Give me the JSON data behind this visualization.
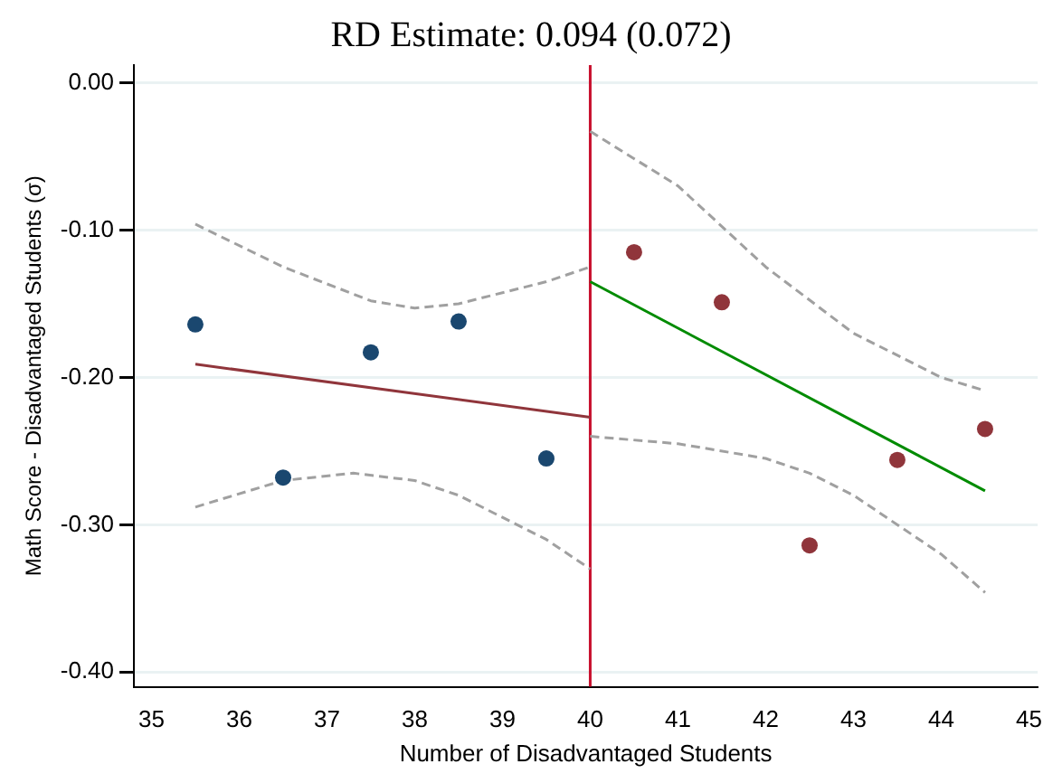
{
  "chart_data": {
    "type": "scatter",
    "title": "RD Estimate: 0.094 (0.072)",
    "xlabel": "Number of Disadvantaged Students",
    "ylabel": "Math Score - Disadvantaged Students (σ)",
    "series": [
      {
        "color": "#1a476f",
        "marker": "circle",
        "x": [
          35.5,
          36.5,
          37.5,
          38.5,
          39.5
        ],
        "values": [
          -0.164,
          -0.268,
          -0.183,
          -0.162,
          -0.255
        ]
      },
      {
        "color": "#90353b",
        "marker": "circle",
        "x": [
          40.5,
          41.5,
          42.5,
          43.5,
          44.5
        ],
        "values": [
          -0.115,
          -0.149,
          -0.314,
          -0.256,
          -0.235
        ]
      },
      {
        "type": "line",
        "color": "#90353b",
        "marker": "none",
        "line_style": "solid",
        "x": [
          35.5,
          40
        ],
        "values": [
          -0.191,
          -0.227
        ]
      },
      {
        "type": "line",
        "color": "#008b00",
        "marker": "none",
        "line_style": "solid",
        "x": [
          40,
          44.5
        ],
        "values": [
          -0.135,
          -0.277
        ]
      },
      {
        "type": "line",
        "color": "#a0a0a0",
        "marker": "none",
        "line_style": "dashed",
        "x": [
          35.5,
          36.5,
          37.5,
          38,
          38.5,
          39.5,
          40
        ],
        "values": [
          -0.096,
          -0.125,
          -0.148,
          -0.153,
          -0.15,
          -0.135,
          -0.125
        ]
      },
      {
        "type": "line",
        "color": "#a0a0a0",
        "marker": "none",
        "line_style": "dashed",
        "x": [
          35.5,
          36.5,
          37.3,
          38,
          38.5,
          39.5,
          40
        ],
        "values": [
          -0.288,
          -0.27,
          -0.265,
          -0.27,
          -0.28,
          -0.31,
          -0.33
        ]
      },
      {
        "type": "line",
        "color": "#a0a0a0",
        "marker": "none",
        "line_style": "dashed",
        "x": [
          40,
          41,
          42,
          43,
          44,
          44.5
        ],
        "values": [
          -0.033,
          -0.07,
          -0.125,
          -0.17,
          -0.2,
          -0.209
        ]
      },
      {
        "type": "line",
        "color": "#a0a0a0",
        "marker": "none",
        "line_style": "dashed",
        "x": [
          40,
          41,
          42,
          42.5,
          43,
          44,
          44.5
        ],
        "values": [
          -0.24,
          -0.245,
          -0.255,
          -0.265,
          -0.28,
          -0.32,
          -0.346
        ]
      }
    ],
    "ref_lines": [
      {
        "axis": "x",
        "value": 40,
        "color": "#c8102e"
      }
    ],
    "xlim": [
      34.8,
      45.1
    ],
    "xticks": [
      35,
      36,
      37,
      38,
      39,
      40,
      41,
      42,
      43,
      44,
      45
    ],
    "ylim": [
      -0.41,
      0.012
    ],
    "yticks": [
      {
        "value": 0,
        "label": "0.00"
      },
      {
        "value": -0.1,
        "label": "-0.10"
      },
      {
        "value": -0.2,
        "label": "-0.20"
      },
      {
        "value": -0.3,
        "label": "-0.30"
      },
      {
        "value": -0.4,
        "label": "-0.40"
      }
    ],
    "grid": "y",
    "legend": false
  }
}
